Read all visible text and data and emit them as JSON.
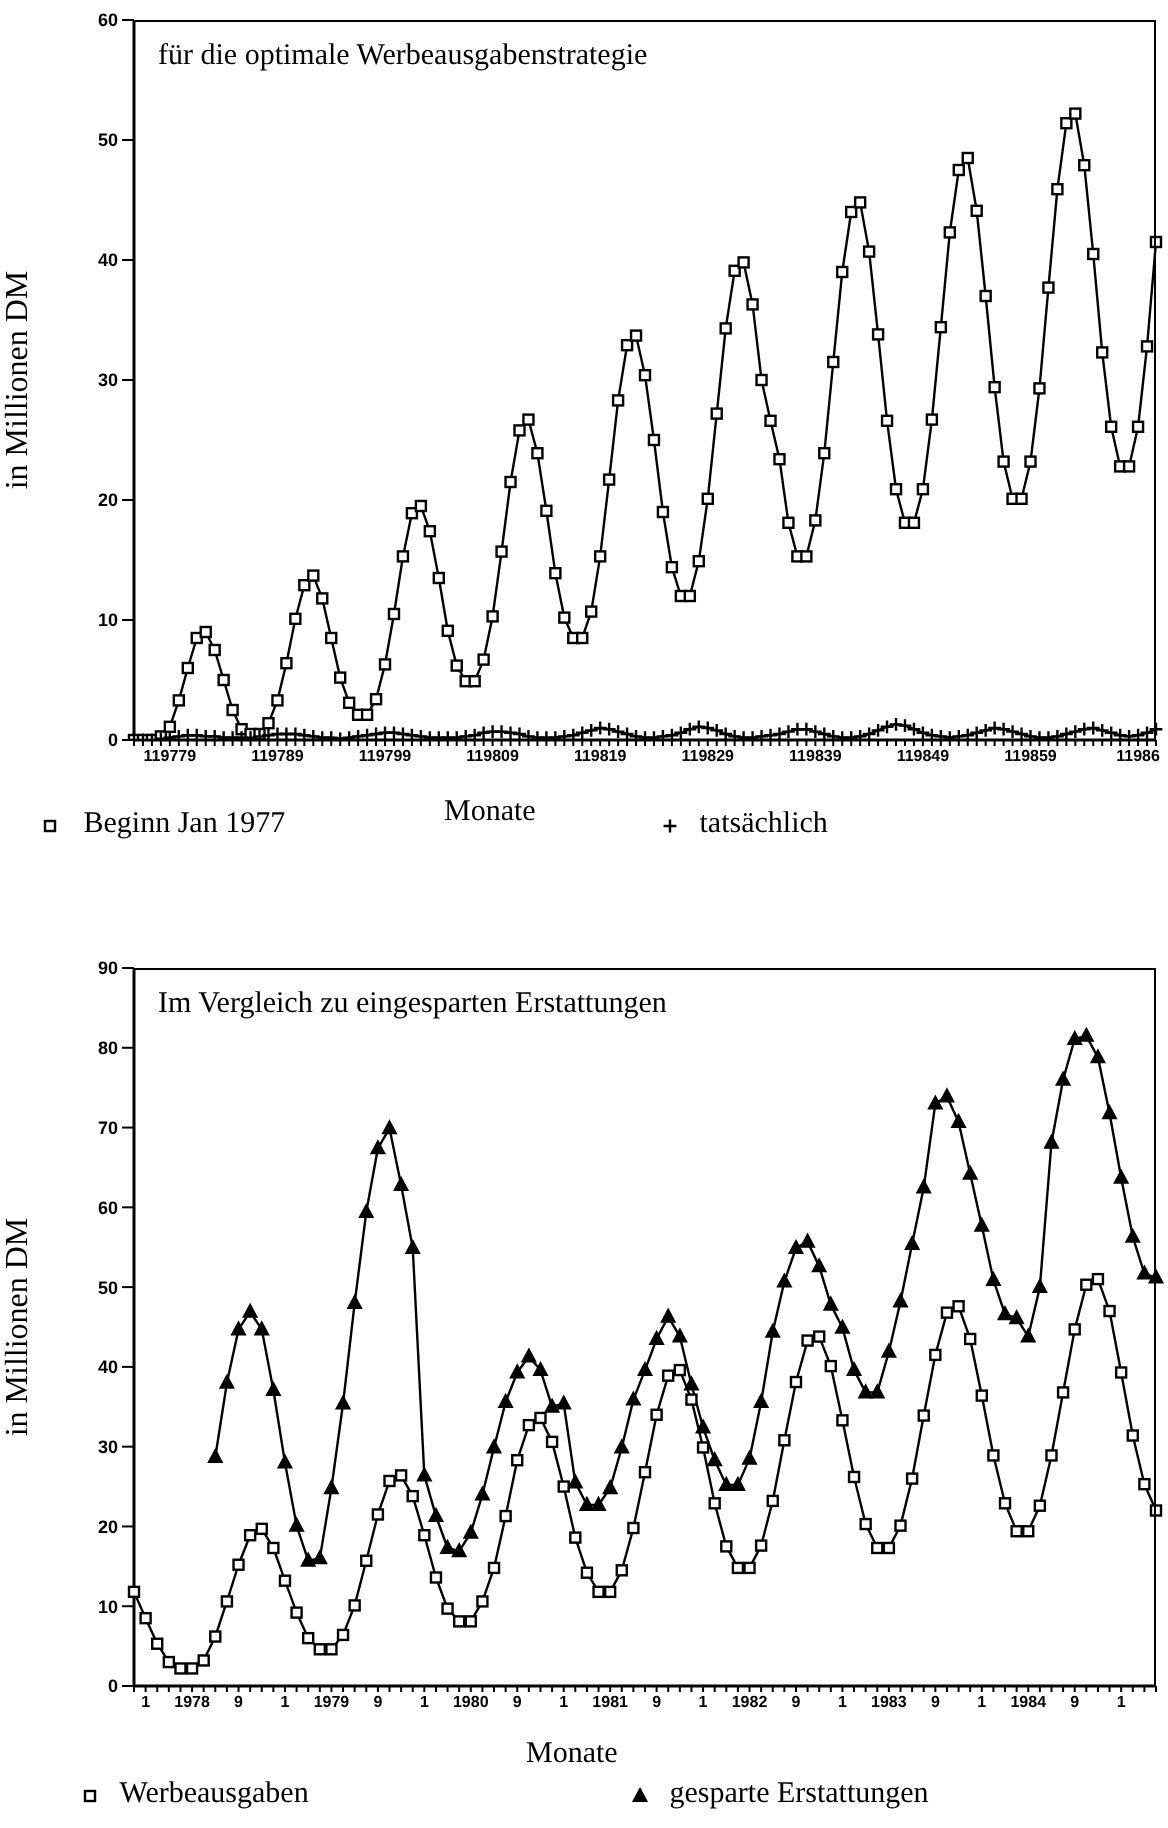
{
  "chart_data": [
    {
      "type": "line",
      "title": "für die optimale Werbeausgabenstrategie",
      "xlabel": "Monate",
      "ylabel": "in Millionen DM",
      "legend": "bottom",
      "categories": [
        null,
        null,
        null,
        null,
        "119779",
        null,
        null,
        null,
        null,
        null,
        null,
        null,
        null,
        null,
        null,
        null,
        "119789",
        null,
        null,
        null,
        null,
        null,
        null,
        null,
        null,
        null,
        null,
        null,
        "119799",
        null,
        null,
        null,
        null,
        null,
        null,
        null,
        null,
        null,
        null,
        null,
        "119809",
        null,
        null,
        null,
        null,
        null,
        null,
        null,
        null,
        null,
        null,
        null,
        "119819",
        null,
        null,
        null,
        null,
        null,
        null,
        null,
        null,
        null,
        null,
        null,
        "119829",
        null,
        null,
        null,
        null,
        null,
        null,
        null,
        null,
        null,
        null,
        null,
        "119839",
        null,
        null,
        null,
        null,
        null,
        null,
        null,
        null,
        null,
        null,
        null,
        "119849",
        null,
        null,
        null,
        null,
        null,
        null,
        null,
        null,
        null,
        null,
        null,
        "119859",
        null,
        null,
        null,
        null,
        null,
        null,
        null,
        null,
        null,
        null,
        null,
        "11986",
        null,
        null
      ],
      "ylim": [
        0,
        60
      ],
      "yticks": [
        0,
        10,
        20,
        30,
        40,
        50,
        60
      ],
      "series": [
        {
          "name": "Beginn Jan 1977",
          "color": "#000000",
          "marker": "square",
          "values": [
            0,
            0,
            0,
            0.3,
            1.1,
            3.3,
            6.0,
            8.5,
            9.0,
            7.5,
            5.0,
            2.5,
            0.9,
            0.5,
            0.5,
            1.4,
            3.3,
            6.4,
            10.1,
            12.9,
            13.7,
            11.8,
            8.5,
            5.2,
            3.1,
            2.1,
            2.1,
            3.4,
            6.3,
            10.5,
            15.3,
            18.9,
            19.5,
            17.4,
            13.5,
            9.1,
            6.2,
            4.9,
            4.9,
            6.7,
            10.3,
            15.7,
            21.5,
            25.8,
            26.7,
            23.9,
            19.1,
            13.9,
            10.2,
            8.5,
            8.5,
            10.7,
            15.3,
            21.7,
            28.3,
            32.9,
            33.7,
            30.4,
            25.0,
            19.0,
            14.4,
            12.0,
            12.0,
            14.9,
            20.1,
            27.2,
            34.3,
            39.1,
            39.8,
            36.3,
            30.0,
            26.6,
            23.4,
            18.1,
            15.3,
            15.3,
            18.3,
            23.9,
            31.5,
            39.0,
            44.0,
            44.8,
            40.7,
            33.8,
            26.6,
            20.9,
            18.1,
            18.1,
            20.9,
            26.7,
            34.4,
            42.3,
            47.5,
            48.5,
            44.1,
            37.0,
            29.4,
            23.2,
            20.1,
            20.1,
            23.2,
            29.3,
            37.7,
            45.9,
            51.4,
            52.2,
            47.9,
            40.5,
            32.3,
            26.1,
            22.8,
            22.8,
            26.1,
            32.8,
            41.5
          ]
        },
        {
          "name": "tatsächlich",
          "color": "#000000",
          "marker": "cross",
          "values": [
            0,
            0,
            0,
            0.1,
            0.2,
            0.3,
            0.4,
            0.4,
            0.3,
            0.3,
            0.2,
            0.2,
            0.2,
            0.2,
            0.3,
            0.4,
            0.5,
            0.5,
            0.5,
            0.4,
            0.3,
            0.2,
            0.2,
            0.1,
            0.2,
            0.3,
            0.4,
            0.5,
            0.6,
            0.6,
            0.5,
            0.4,
            0.3,
            0.2,
            0.2,
            0.2,
            0.2,
            0.3,
            0.4,
            0.6,
            0.7,
            0.7,
            0.6,
            0.5,
            0.3,
            0.2,
            0.2,
            0.2,
            0.3,
            0.4,
            0.6,
            0.8,
            1.0,
            0.9,
            0.7,
            0.5,
            0.3,
            0.2,
            0.2,
            0.3,
            0.4,
            0.6,
            0.9,
            1.1,
            1.0,
            0.8,
            0.5,
            0.3,
            0.2,
            0.2,
            0.3,
            0.4,
            0.5,
            0.7,
            0.9,
            0.9,
            0.7,
            0.5,
            0.3,
            0.2,
            0.2,
            0.3,
            0.5,
            0.8,
            1.1,
            1.3,
            1.2,
            0.9,
            0.6,
            0.4,
            0.3,
            0.2,
            0.3,
            0.4,
            0.6,
            0.8,
            1.0,
            0.9,
            0.7,
            0.5,
            0.3,
            0.2,
            0.2,
            0.3,
            0.5,
            0.7,
            0.9,
            1.0,
            0.8,
            0.6,
            0.4,
            0.3,
            0.4,
            0.6,
            0.9
          ]
        }
      ]
    },
    {
      "type": "line",
      "title": "Im Vergleich zu eingesparten Erstattungen",
      "xlabel": "Monate",
      "ylabel": "in Millionen DM",
      "legend": "bottom",
      "categories": [
        null,
        "1",
        null,
        null,
        null,
        "1978",
        null,
        null,
        null,
        "9",
        null,
        null,
        null,
        "1",
        null,
        null,
        null,
        "1979",
        null,
        null,
        null,
        "9",
        null,
        null,
        null,
        "1",
        null,
        null,
        null,
        "1980",
        null,
        null,
        null,
        "9",
        null,
        null,
        null,
        "1",
        null,
        null,
        null,
        "1981",
        null,
        null,
        null,
        "9",
        null,
        null,
        null,
        "1",
        null,
        null,
        null,
        "1982",
        null,
        null,
        null,
        "9",
        null,
        null,
        null,
        "1",
        null,
        null,
        null,
        "1983",
        null,
        null,
        null,
        "9",
        null,
        null,
        null,
        "1",
        null,
        null,
        null,
        "1984",
        null,
        null,
        null,
        "9",
        null,
        null,
        null,
        "1",
        null,
        null,
        null
      ],
      "ylim": [
        0,
        90
      ],
      "yticks": [
        0,
        10,
        20,
        30,
        40,
        50,
        60,
        70,
        80,
        90
      ],
      "series": [
        {
          "name": "Werbeausgaben",
          "color": "#000000",
          "marker": "square",
          "values": [
            11.8,
            8.5,
            5.3,
            3.0,
            2.2,
            2.2,
            3.2,
            6.2,
            10.6,
            15.2,
            18.9,
            19.7,
            17.3,
            13.2,
            9.2,
            6.0,
            4.6,
            4.6,
            6.4,
            10.1,
            15.7,
            21.5,
            25.7,
            26.4,
            23.8,
            18.9,
            13.6,
            9.7,
            8.1,
            8.1,
            10.6,
            14.8,
            21.3,
            28.3,
            32.7,
            33.6,
            30.6,
            25.0,
            18.6,
            14.2,
            11.8,
            11.8,
            14.5,
            19.8,
            26.8,
            34.0,
            38.9,
            39.6,
            35.9,
            29.9,
            22.9,
            17.5,
            14.8,
            14.8,
            17.6,
            23.2,
            30.8,
            38.1,
            43.3,
            43.8,
            40.1,
            33.3,
            26.2,
            20.3,
            17.3,
            17.3,
            20.1,
            26.0,
            33.9,
            41.5,
            46.8,
            47.6,
            43.5,
            36.4,
            28.9,
            22.9,
            19.4,
            19.4,
            22.6,
            28.9,
            36.8,
            44.7,
            50.3,
            51.0,
            47.0,
            39.3,
            31.4,
            25.3,
            22.0
          ]
        },
        {
          "name": "gesparte Erstattungen",
          "color": "#000000",
          "marker": "triangle",
          "values": [
            null,
            null,
            null,
            null,
            null,
            null,
            null,
            28.7,
            38.0,
            44.7,
            46.9,
            44.7,
            37.1,
            28.0,
            20.1,
            15.7,
            16.0,
            24.8,
            35.4,
            48.0,
            59.4,
            67.4,
            69.9,
            62.8,
            54.9,
            26.4,
            21.3,
            17.3,
            16.9,
            19.2,
            24.0,
            29.9,
            35.6,
            39.3,
            41.3,
            39.6,
            35.0,
            35.4,
            25.5,
            22.7,
            22.7,
            24.8,
            29.9,
            35.9,
            39.6,
            43.5,
            46.3,
            43.8,
            37.8,
            32.4,
            28.3,
            25.2,
            25.2,
            28.5,
            35.6,
            44.4,
            50.7,
            54.9,
            55.7,
            52.6,
            47.8,
            44.9,
            39.6,
            36.8,
            36.8,
            41.9,
            48.2,
            55.4,
            62.5,
            73.0,
            73.9,
            70.7,
            64.2,
            57.7,
            50.9,
            46.6,
            46.1,
            43.8,
            50.0,
            68.1,
            76.0,
            81.1,
            81.5,
            78.8,
            71.8,
            63.7,
            56.3,
            51.7,
            51.2
          ]
        }
      ]
    }
  ]
}
